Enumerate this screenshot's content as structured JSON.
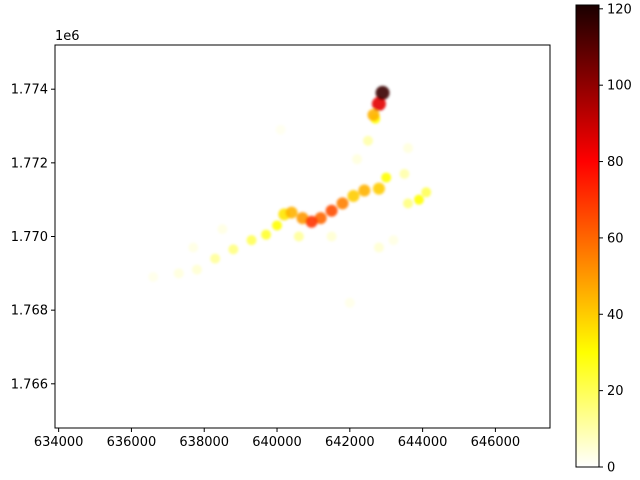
{
  "chart_data": {
    "type": "heatmap",
    "title": "",
    "xlabel": "",
    "ylabel": "",
    "x_offset_label": "",
    "y_offset_label": "1e6",
    "xlim": [
      633900,
      647500
    ],
    "ylim": [
      1764800,
      1775200
    ],
    "x_ticks": [
      634000,
      636000,
      638000,
      640000,
      642000,
      644000,
      646000
    ],
    "x_tick_labels": [
      "634000",
      "636000",
      "638000",
      "640000",
      "642000",
      "644000",
      "646000"
    ],
    "y_ticks": [
      1766000,
      1768000,
      1770000,
      1772000,
      1774000
    ],
    "y_tick_labels": [
      "1.766",
      "1.768",
      "1.770",
      "1.772",
      "1.774"
    ],
    "grid": false,
    "colormap": "hot_r",
    "colorbar": {
      "range": [
        0,
        121
      ],
      "ticks": [
        0,
        20,
        40,
        60,
        80,
        100,
        120
      ],
      "tick_labels": [
        "0",
        "20",
        "40",
        "60",
        "80",
        "100",
        "120"
      ],
      "stops": [
        {
          "value": 0,
          "color": "#ffffff"
        },
        {
          "value": 30,
          "color": "#ffff00"
        },
        {
          "value": 60,
          "color": "#ff6600"
        },
        {
          "value": 80,
          "color": "#ff0000"
        },
        {
          "value": 121,
          "color": "#1a0000"
        }
      ]
    },
    "blobs": [
      {
        "x": 642900,
        "y": 1773900,
        "value": 115
      },
      {
        "x": 642800,
        "y": 1773600,
        "value": 85
      },
      {
        "x": 642650,
        "y": 1773300,
        "value": 45
      },
      {
        "x": 642700,
        "y": 1773200,
        "value": 30
      },
      {
        "x": 642500,
        "y": 1772600,
        "value": 10
      },
      {
        "x": 642200,
        "y": 1772100,
        "value": 6
      },
      {
        "x": 643600,
        "y": 1772400,
        "value": 6
      },
      {
        "x": 643500,
        "y": 1771700,
        "value": 10
      },
      {
        "x": 643000,
        "y": 1771600,
        "value": 30
      },
      {
        "x": 642800,
        "y": 1771300,
        "value": 40
      },
      {
        "x": 642400,
        "y": 1771250,
        "value": 45
      },
      {
        "x": 642100,
        "y": 1771100,
        "value": 40
      },
      {
        "x": 641800,
        "y": 1770900,
        "value": 55
      },
      {
        "x": 641500,
        "y": 1770700,
        "value": 65
      },
      {
        "x": 641200,
        "y": 1770500,
        "value": 60
      },
      {
        "x": 640950,
        "y": 1770400,
        "value": 70
      },
      {
        "x": 640700,
        "y": 1770500,
        "value": 50
      },
      {
        "x": 640400,
        "y": 1770650,
        "value": 45
      },
      {
        "x": 640200,
        "y": 1770600,
        "value": 35
      },
      {
        "x": 640000,
        "y": 1770300,
        "value": 30
      },
      {
        "x": 639700,
        "y": 1770050,
        "value": 25
      },
      {
        "x": 639300,
        "y": 1769900,
        "value": 20
      },
      {
        "x": 638800,
        "y": 1769650,
        "value": 15
      },
      {
        "x": 638300,
        "y": 1769400,
        "value": 12
      },
      {
        "x": 637800,
        "y": 1769100,
        "value": 8
      },
      {
        "x": 637300,
        "y": 1769000,
        "value": 6
      },
      {
        "x": 636600,
        "y": 1768900,
        "value": 4
      },
      {
        "x": 643900,
        "y": 1771000,
        "value": 30
      },
      {
        "x": 644100,
        "y": 1771200,
        "value": 20
      },
      {
        "x": 643600,
        "y": 1770900,
        "value": 15
      },
      {
        "x": 642800,
        "y": 1769700,
        "value": 8
      },
      {
        "x": 643200,
        "y": 1769900,
        "value": 5
      },
      {
        "x": 640600,
        "y": 1770000,
        "value": 12
      },
      {
        "x": 641500,
        "y": 1770000,
        "value": 8
      },
      {
        "x": 638500,
        "y": 1770200,
        "value": 5
      },
      {
        "x": 637700,
        "y": 1769700,
        "value": 5
      },
      {
        "x": 642000,
        "y": 1768200,
        "value": 4
      },
      {
        "x": 640100,
        "y": 1772900,
        "value": 3
      }
    ]
  }
}
